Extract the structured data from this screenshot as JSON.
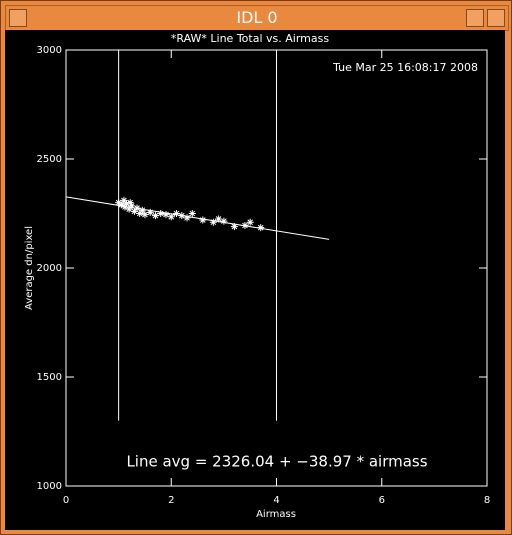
{
  "window": {
    "title": "IDL 0"
  },
  "chart_data": {
    "type": "scatter",
    "title": "*RAW* Line Total vs. Airmass",
    "timestamp": "Tue Mar 25 16:08:17 2008",
    "xlabel": "Airmass",
    "ylabel": "Average dn/pixel",
    "xlim": [
      0,
      8
    ],
    "xticks": [
      0,
      2,
      4,
      6,
      8
    ],
    "ylim": [
      1000,
      3000
    ],
    "yticks": [
      1000,
      1500,
      2000,
      2500,
      3000
    ],
    "color": "#ffffff",
    "x": [
      1.0,
      1.05,
      1.1,
      1.12,
      1.15,
      1.2,
      1.22,
      1.25,
      1.3,
      1.35,
      1.4,
      1.45,
      1.5,
      1.6,
      1.7,
      1.8,
      1.9,
      2.0,
      2.1,
      2.2,
      2.3,
      2.4,
      2.6,
      2.8,
      2.9,
      3.0,
      3.2,
      3.4,
      3.5,
      3.7
    ],
    "y": [
      2300,
      2290,
      2310,
      2280,
      2295,
      2270,
      2300,
      2285,
      2260,
      2275,
      2250,
      2265,
      2245,
      2255,
      2240,
      2250,
      2245,
      2235,
      2250,
      2240,
      2230,
      2250,
      2220,
      2210,
      2225,
      2215,
      2190,
      2195,
      2210,
      2185
    ],
    "fit": {
      "intercept": 2326.04,
      "slope": -38.97,
      "xrange": [
        0,
        5
      ]
    },
    "vlines": {
      "x": [
        1,
        4
      ],
      "y": [
        1300,
        3000
      ]
    },
    "annotation": "Line avg = 2326.04 + −38.97 * airmass"
  }
}
